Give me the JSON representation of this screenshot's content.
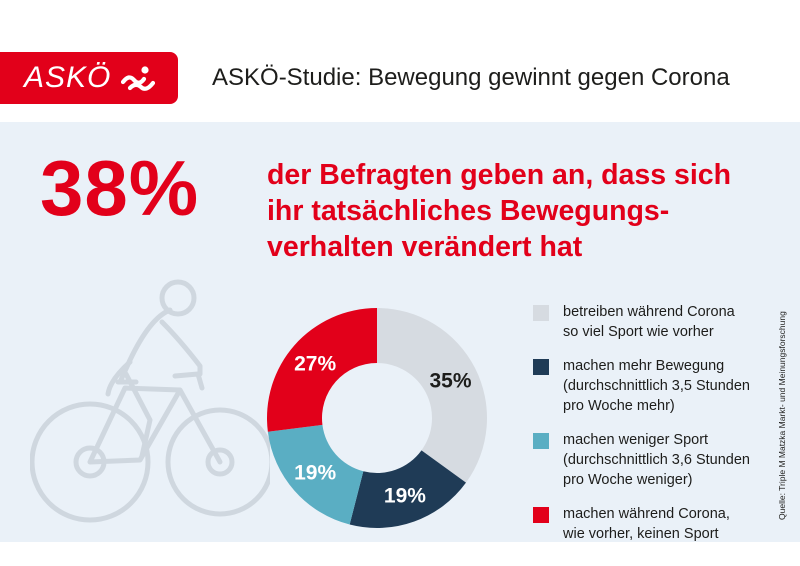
{
  "header": {
    "logo_text": "ASKÖ",
    "title": "ASKÖ-Studie: Bewegung gewinnt gegen Corona"
  },
  "highlight": {
    "percent": "38%",
    "lines": [
      "der Befragten geben an, dass sich",
      "ihr tatsächliches Bewegungs-",
      "verhalten verändert hat"
    ]
  },
  "legend": [
    {
      "lines": [
        "betreiben während Corona",
        "so viel Sport wie vorher"
      ],
      "color": "#d6dbe1"
    },
    {
      "lines": [
        "machen mehr Bewegung",
        "(durchschnittlich 3,5 Stunden",
        "pro Woche mehr)"
      ],
      "color": "#1f3b56"
    },
    {
      "lines": [
        "machen weniger Sport",
        "(durchschnittlich 3,6 Stunden",
        "pro Woche weniger)"
      ],
      "color": "#5aaec3"
    },
    {
      "lines": [
        "machen während Corona,",
        "wie vorher, keinen Sport"
      ],
      "color": "#e2001a"
    }
  ],
  "source": "Quelle: Triple M Matzka Markt- und Meinungsforschung",
  "colors": {
    "brand_red": "#e2001a",
    "panel_bg": "#eaf1f8",
    "text": "#1d1d1b"
  },
  "chart_data": {
    "type": "pie",
    "title": "",
    "values": [
      35,
      19,
      19,
      27
    ],
    "labels": [
      "35%",
      "19%",
      "19%",
      "27%"
    ],
    "colors": [
      "#d6dbe1",
      "#1f3b56",
      "#5aaec3",
      "#e2001a"
    ],
    "label_colors": [
      "#1d1d1b",
      "#ffffff",
      "#ffffff",
      "#ffffff"
    ],
    "donut": true
  }
}
